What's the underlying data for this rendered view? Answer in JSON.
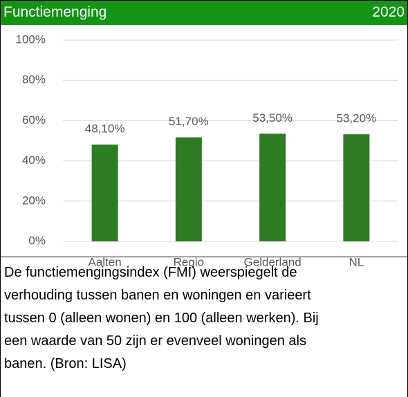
{
  "chart_data": {
    "type": "bar",
    "title": "Functiemenging",
    "subtitle": "2020",
    "categories": [
      "Aalten",
      "Regio",
      "Gelderland",
      "NL"
    ],
    "values": [
      48.1,
      51.7,
      53.5,
      53.2
    ],
    "value_labels": [
      "48,10%",
      "51,70%",
      "53,50%",
      "53,20%"
    ],
    "color": "#2e7d24",
    "ylim": [
      0,
      100
    ],
    "yticks": [
      {
        "value": 0,
        "label": "0%"
      },
      {
        "value": 20,
        "label": "20%"
      },
      {
        "value": 40,
        "label": "40%"
      },
      {
        "value": 60,
        "label": "60%"
      },
      {
        "value": 80,
        "label": "80%"
      },
      {
        "value": 100,
        "label": "100%"
      }
    ],
    "grid": true
  },
  "caption": [
    "De functiemengingsindex (FMI) weerspiegelt de",
    "verhouding tussen banen en woningen en varieert",
    "tussen 0 (alleen wonen) en 100 (alleen werken). Bij",
    "een waarde van 50 zijn er evenveel woningen als",
    "banen. (Bron: LISA)"
  ]
}
